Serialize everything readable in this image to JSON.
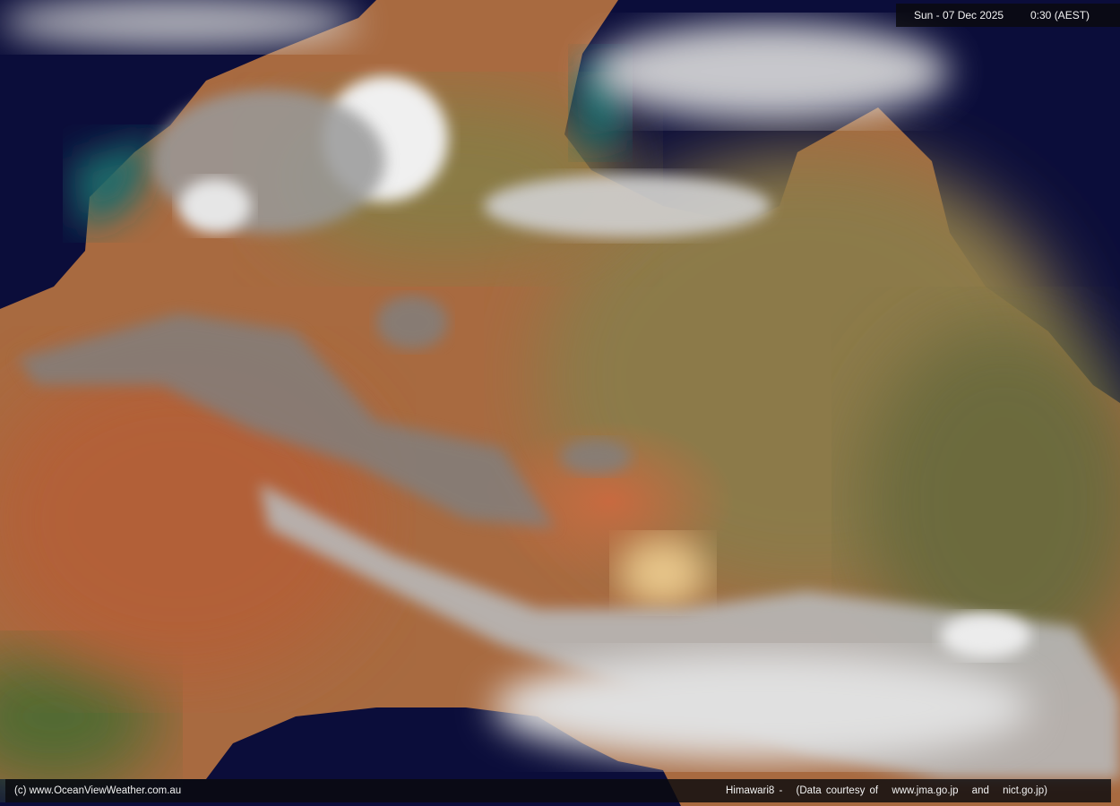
{
  "header": {
    "date": "Sun - 07 Dec 2025",
    "time": "0:30 (AEST)"
  },
  "footer": {
    "copyright": "(c) www.OceanViewWeather.com.au",
    "satellite": "Himawari8  -",
    "courtesy": "(Data courtesy of",
    "source1": "www.jma.go.jp",
    "and": "and",
    "source2": "nict.go.jp)"
  },
  "colors": {
    "ocean": "#0b0d3a",
    "land_red": "#b0603a",
    "land_olive": "#8a7a45",
    "cloud": "#e6e6e6"
  }
}
